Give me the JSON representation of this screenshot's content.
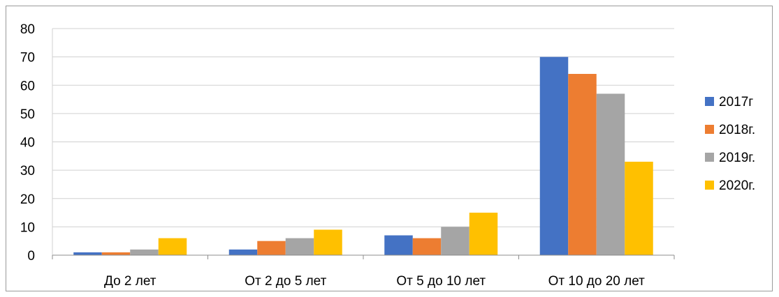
{
  "chart_data": {
    "type": "bar",
    "categories": [
      "До 2 лет",
      "От 2 до 5 лет",
      "От 5 до 10 лет",
      "От 10 до 20 лет"
    ],
    "series": [
      {
        "name": "2017г",
        "color": "#4472C4",
        "values": [
          1,
          2,
          7,
          70
        ]
      },
      {
        "name": "2018г.",
        "color": "#ED7D31",
        "values": [
          1,
          5,
          6,
          64
        ]
      },
      {
        "name": "2019г.",
        "color": "#A5A5A5",
        "values": [
          2,
          6,
          10,
          57
        ]
      },
      {
        "name": "2020г.",
        "color": "#FFC000",
        "values": [
          6,
          9,
          15,
          33
        ]
      }
    ],
    "y_ticks": [
      "0",
      "10",
      "20",
      "30",
      "40",
      "50",
      "60",
      "70",
      "80"
    ],
    "ylim": [
      0,
      80
    ],
    "grid": true,
    "legend_position": "right"
  }
}
